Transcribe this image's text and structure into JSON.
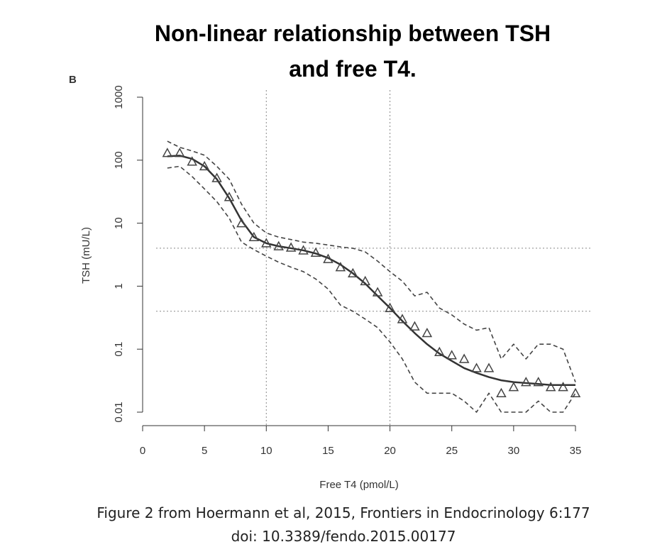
{
  "chart_data": {
    "type": "line",
    "title": [
      "Non-linear relationship between TSH",
      "and free T4."
    ],
    "panel_label": "B",
    "x_label": "Free T4 (pmol/L)",
    "y_label": "TSH (mU/L)",
    "caption": [
      "Figure 2 from Hoermann et al, 2015, Frontiers in Endocrinology 6:177",
      "doi: 10.3389/fendo.2015.00177"
    ],
    "x": [
      2,
      3,
      4,
      5,
      6,
      7,
      8,
      9,
      10,
      11,
      12,
      13,
      14,
      15,
      16,
      17,
      18,
      19,
      20,
      21,
      22,
      23,
      24,
      25,
      26,
      27,
      28,
      29,
      30,
      31,
      32,
      33,
      34,
      35
    ],
    "series": [
      {
        "style": "solid",
        "color": "#333333",
        "values": [
          115,
          118,
          105,
          80,
          50,
          25,
          11,
          6,
          4.8,
          4.3,
          4.0,
          3.7,
          3.3,
          2.8,
          2.2,
          1.6,
          1.1,
          0.7,
          0.45,
          0.28,
          0.18,
          0.12,
          0.085,
          0.065,
          0.05,
          0.042,
          0.036,
          0.032,
          0.03,
          0.029,
          0.028,
          0.027,
          0.027,
          0.027
        ]
      },
      {
        "style": "dashed",
        "color": "#444444",
        "values": [
          200,
          160,
          140,
          120,
          80,
          50,
          20,
          10,
          7,
          6,
          5.5,
          5,
          4.8,
          4.5,
          4.2,
          4,
          3.5,
          2.5,
          1.7,
          1.2,
          0.7,
          0.8,
          0.45,
          0.35,
          0.25,
          0.2,
          0.22,
          0.07,
          0.12,
          0.07,
          0.12,
          0.12,
          0.1,
          0.03
        ]
      },
      {
        "style": "dashed",
        "color": "#444444",
        "values": [
          75,
          80,
          55,
          35,
          22,
          12,
          5,
          3.8,
          3,
          2.4,
          2,
          1.7,
          1.3,
          0.9,
          0.5,
          0.4,
          0.3,
          0.22,
          0.13,
          0.07,
          0.03,
          0.02,
          0.02,
          0.02,
          0.015,
          0.01,
          0.02,
          0.01,
          0.01,
          0.01,
          0.015,
          0.01,
          0.01,
          0.02
        ]
      },
      {
        "style": "triangle",
        "color": "#444444",
        "values": [
          130,
          130,
          95,
          80,
          52,
          26,
          10,
          6,
          4.8,
          4.3,
          4.1,
          3.7,
          3.4,
          2.7,
          2.0,
          1.6,
          1.2,
          0.8,
          0.45,
          0.3,
          0.23,
          0.18,
          0.09,
          0.08,
          0.07,
          0.05,
          0.05,
          0.02,
          0.025,
          0.03,
          0.03,
          0.025,
          0.025,
          0.02
        ]
      }
    ],
    "vlines": [
      10,
      20
    ],
    "hlines": [
      4,
      0.4
    ],
    "xlim": [
      0,
      35
    ],
    "xticks": [
      0,
      5,
      10,
      15,
      20,
      25,
      30,
      35
    ],
    "ylim": [
      0.01,
      1000
    ],
    "yticks": [
      0.01,
      0.1,
      1,
      10,
      100,
      1000
    ],
    "ylog": true
  }
}
